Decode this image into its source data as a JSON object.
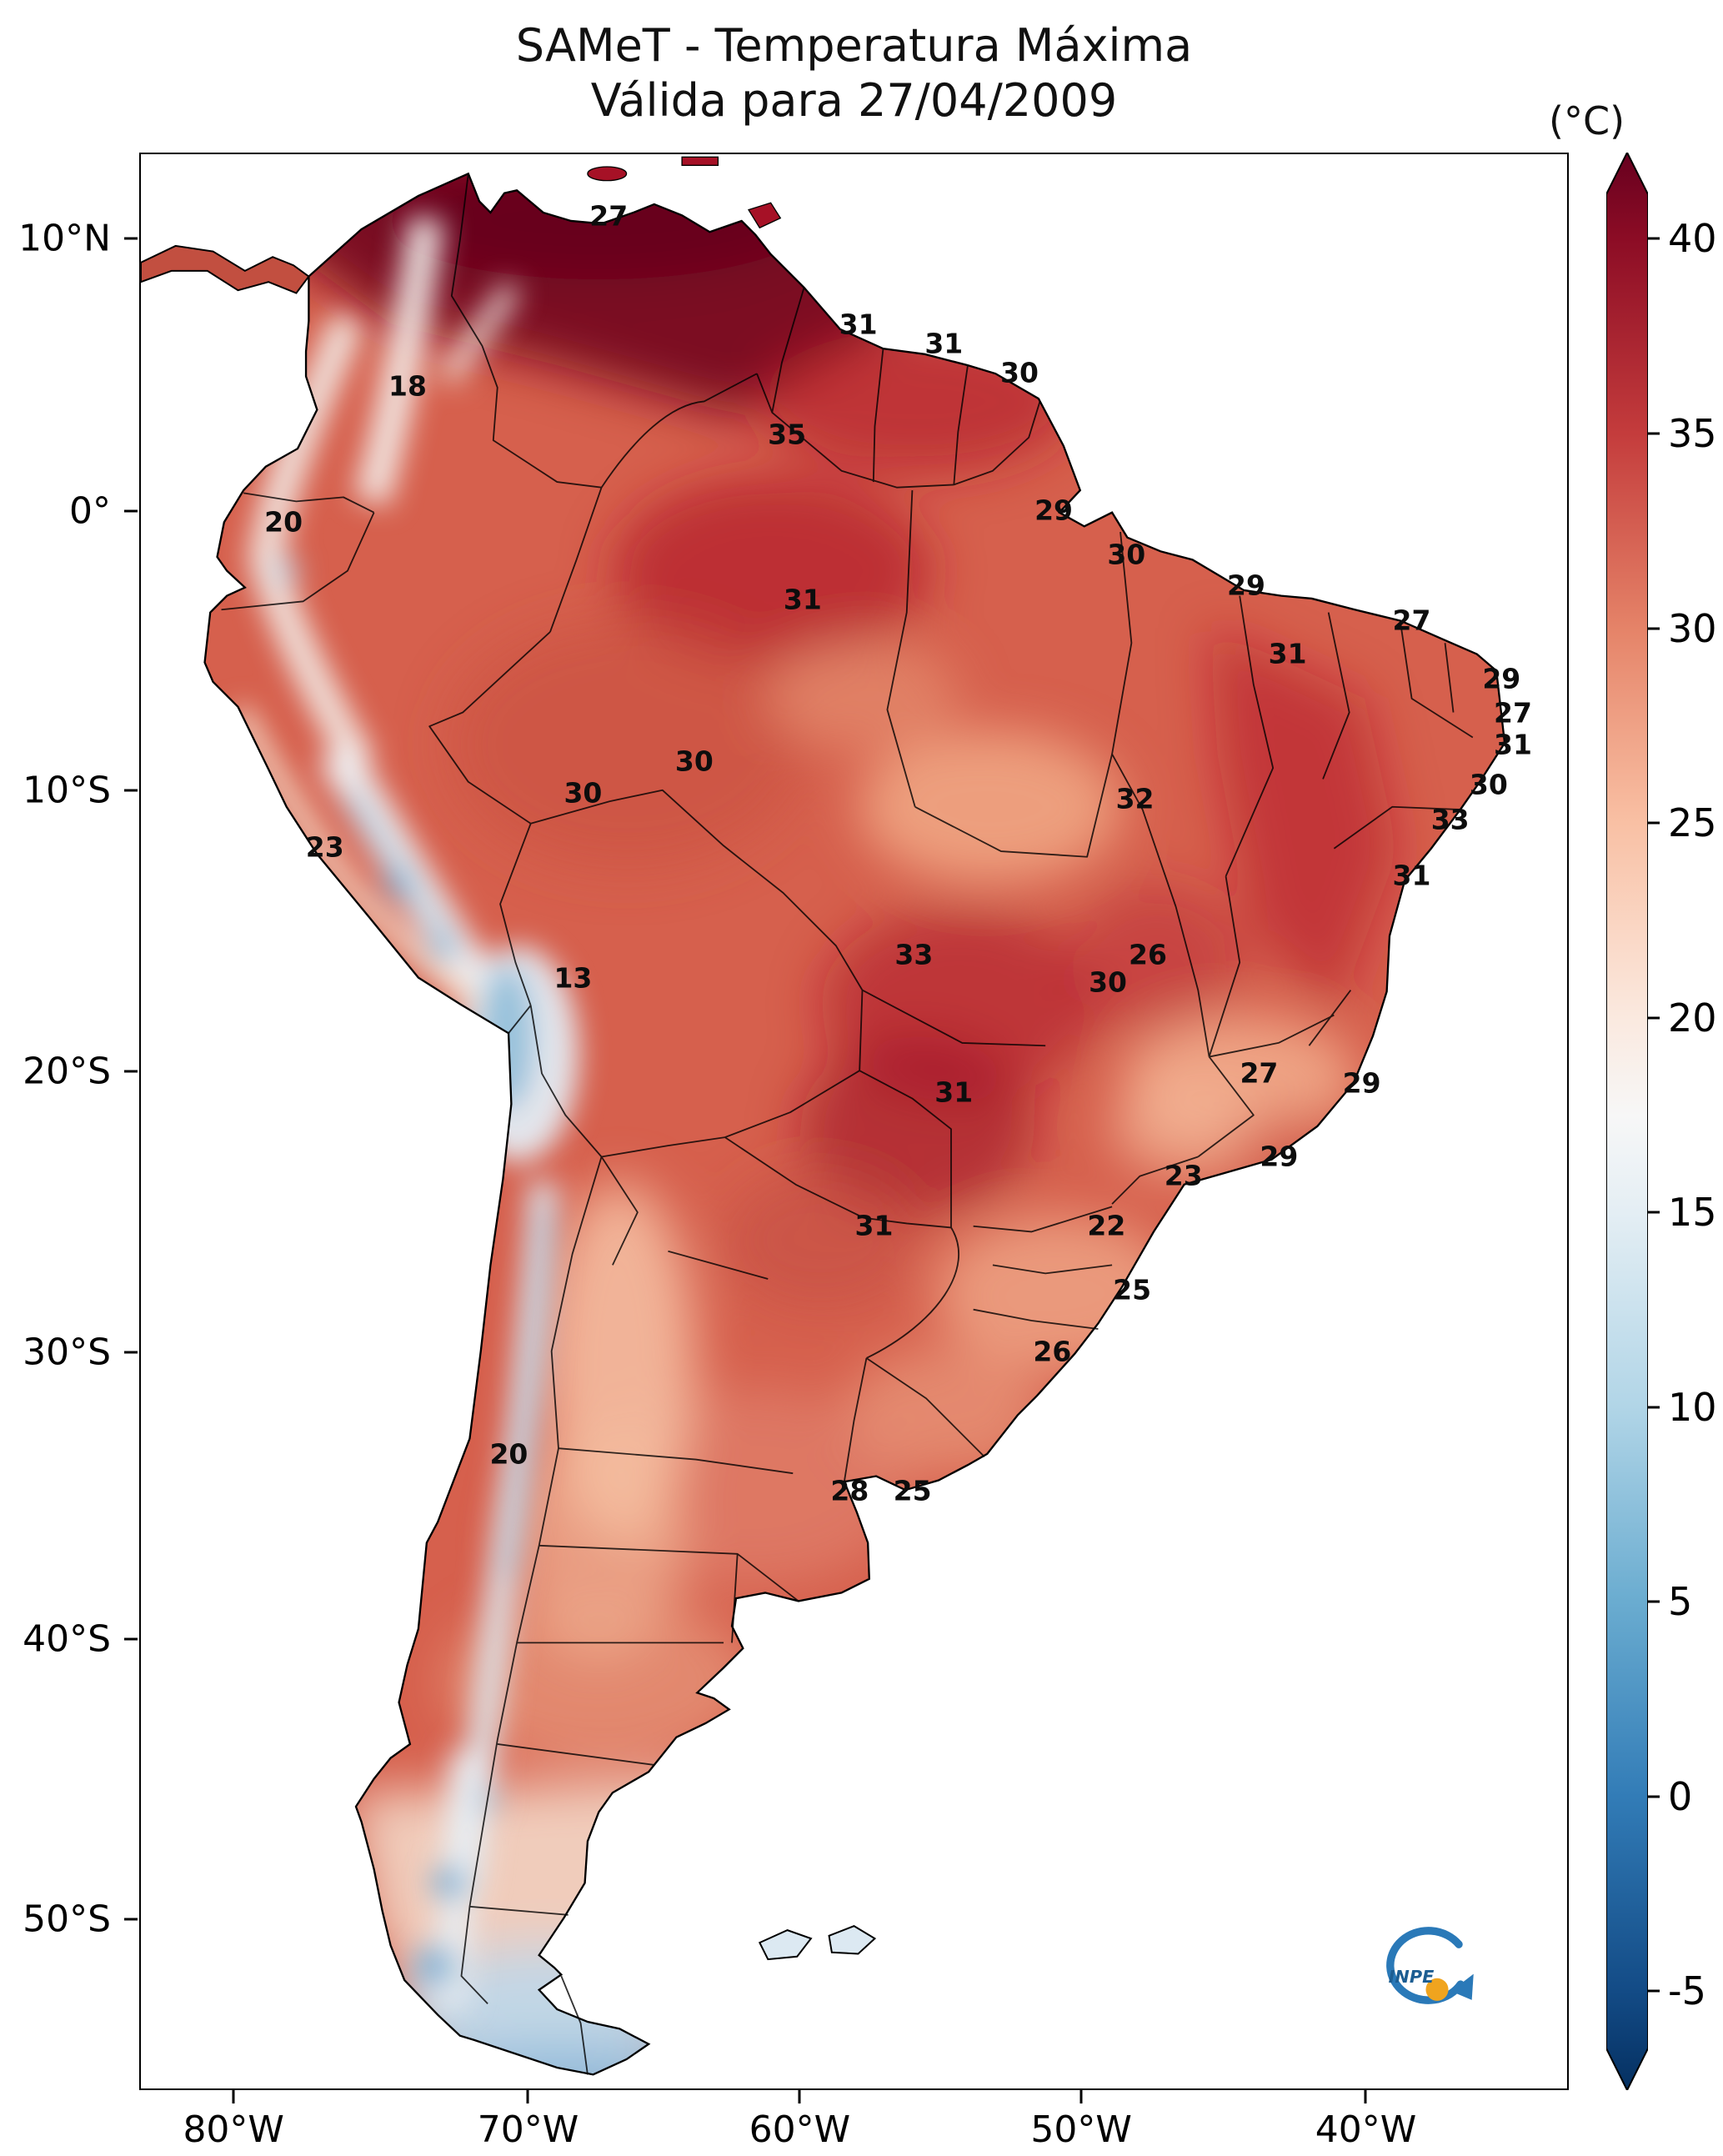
{
  "title": {
    "line1": "SAMeT - Temperatura Máxima",
    "line2": "Válida para 27/04/2009"
  },
  "colorbar": {
    "unit": "(°C)",
    "ticks": [
      40,
      35,
      30,
      25,
      20,
      15,
      10,
      5,
      0,
      -5
    ],
    "cmap": "RdBu_r",
    "top_color": "#67001f",
    "bottom_color": "#053061"
  },
  "axes": {
    "lat": [
      {
        "label": "10°N",
        "pct": 4.45
      },
      {
        "label": "0°",
        "pct": 18.5
      },
      {
        "label": "10°S",
        "pct": 32.9
      },
      {
        "label": "20°S",
        "pct": 47.4
      },
      {
        "label": "30°S",
        "pct": 61.9
      },
      {
        "label": "40°S",
        "pct": 76.7
      },
      {
        "label": "50°S",
        "pct": 91.2
      }
    ],
    "lon": [
      {
        "label": "80°W",
        "pct": 6.6
      },
      {
        "label": "70°W",
        "pct": 27.2
      },
      {
        "label": "60°W",
        "pct": 46.2
      },
      {
        "label": "50°W",
        "pct": 65.9
      },
      {
        "label": "40°W",
        "pct": 85.8
      }
    ]
  },
  "logo": {
    "text": "INPE"
  },
  "chart_data": {
    "type": "heatmap",
    "title": "SAMeT - Temperatura Máxima",
    "subtitle": "Válida para 27/04/2009",
    "unit": "°C",
    "colorbar_ticks": [
      40,
      35,
      30,
      25,
      20,
      15,
      10,
      5,
      0,
      -5
    ],
    "colorbar_extend": "both",
    "lat_ticks": [
      "10°N",
      "0°",
      "10°S",
      "20°S",
      "30°S",
      "40°S",
      "50°S"
    ],
    "lon_ticks": [
      "80°W",
      "70°W",
      "60°W",
      "50°W",
      "40°W"
    ],
    "points": [
      {
        "v": "27",
        "x": 32.8,
        "y": 3.2
      },
      {
        "v": "31",
        "x": 50.3,
        "y": 8.8
      },
      {
        "v": "31",
        "x": 56.3,
        "y": 9.8
      },
      {
        "v": "30",
        "x": 61.6,
        "y": 11.3
      },
      {
        "v": "18",
        "x": 18.7,
        "y": 12.0
      },
      {
        "v": "35",
        "x": 45.3,
        "y": 14.5
      },
      {
        "v": "29",
        "x": 64.0,
        "y": 18.4
      },
      {
        "v": "20",
        "x": 10.0,
        "y": 19.0
      },
      {
        "v": "30",
        "x": 69.1,
        "y": 20.7
      },
      {
        "v": "29",
        "x": 77.5,
        "y": 22.3
      },
      {
        "v": "31",
        "x": 46.4,
        "y": 23.0
      },
      {
        "v": "27",
        "x": 89.1,
        "y": 24.1
      },
      {
        "v": "31",
        "x": 80.4,
        "y": 25.8
      },
      {
        "v": "29",
        "x": 95.4,
        "y": 27.1
      },
      {
        "v": "27",
        "x": 96.2,
        "y": 28.9
      },
      {
        "v": "31",
        "x": 96.2,
        "y": 30.5
      },
      {
        "v": "30",
        "x": 38.8,
        "y": 31.4
      },
      {
        "v": "30",
        "x": 94.5,
        "y": 32.6
      },
      {
        "v": "30",
        "x": 31.0,
        "y": 33.0
      },
      {
        "v": "32",
        "x": 69.7,
        "y": 33.3
      },
      {
        "v": "33",
        "x": 91.8,
        "y": 34.4
      },
      {
        "v": "23",
        "x": 12.9,
        "y": 35.8
      },
      {
        "v": "31",
        "x": 89.1,
        "y": 37.3
      },
      {
        "v": "33",
        "x": 54.2,
        "y": 41.4
      },
      {
        "v": "26",
        "x": 70.6,
        "y": 41.4
      },
      {
        "v": "30",
        "x": 67.8,
        "y": 42.8
      },
      {
        "v": "13",
        "x": 30.3,
        "y": 42.6
      },
      {
        "v": "27",
        "x": 78.4,
        "y": 47.5
      },
      {
        "v": "29",
        "x": 85.6,
        "y": 48.0
      },
      {
        "v": "31",
        "x": 57.0,
        "y": 48.5
      },
      {
        "v": "29",
        "x": 79.8,
        "y": 51.8
      },
      {
        "v": "23",
        "x": 73.1,
        "y": 52.8
      },
      {
        "v": "22",
        "x": 67.7,
        "y": 55.4
      },
      {
        "v": "31",
        "x": 51.4,
        "y": 55.4
      },
      {
        "v": "25",
        "x": 69.5,
        "y": 58.7
      },
      {
        "v": "26",
        "x": 63.9,
        "y": 61.9
      },
      {
        "v": "20",
        "x": 25.8,
        "y": 67.2
      },
      {
        "v": "28",
        "x": 49.7,
        "y": 69.1
      },
      {
        "v": "25",
        "x": 54.1,
        "y": 69.1
      }
    ]
  }
}
